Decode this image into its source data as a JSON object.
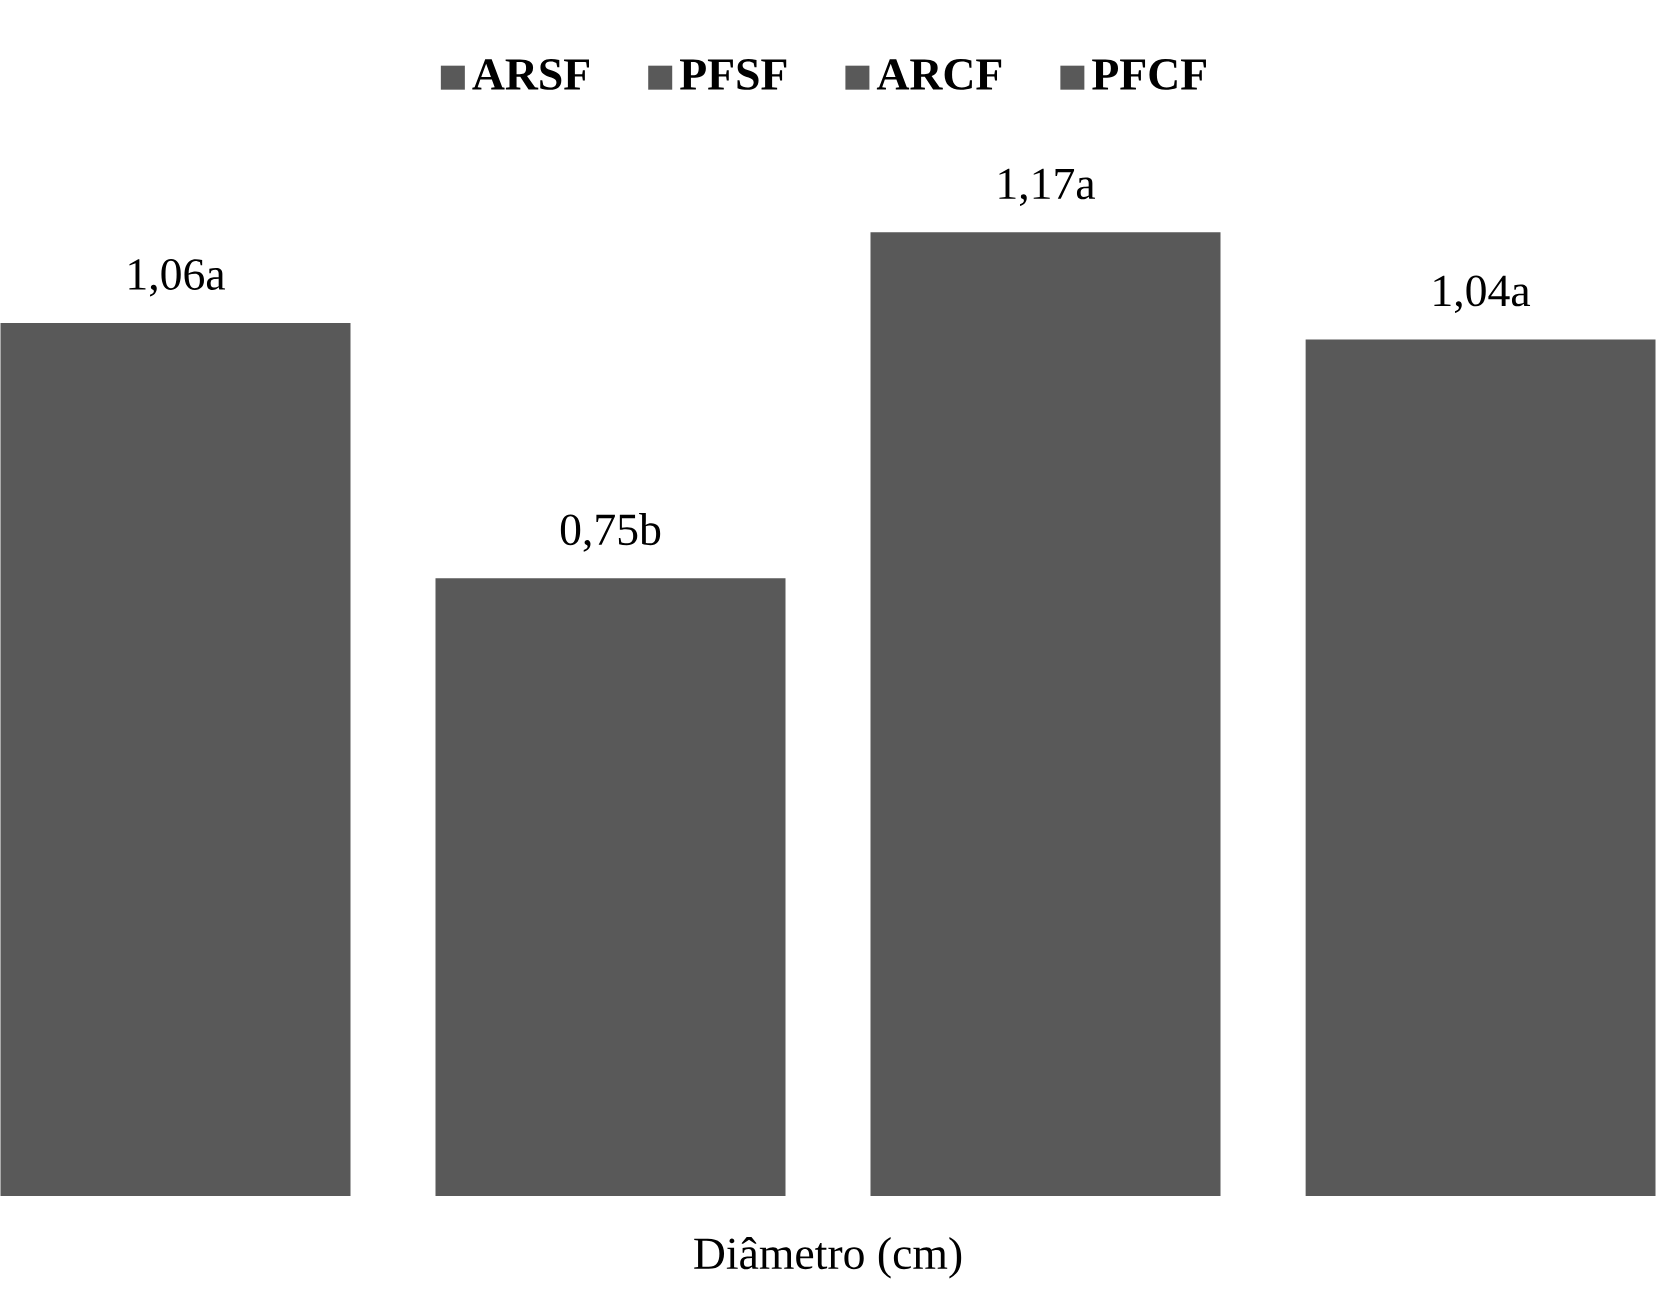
{
  "chart_data": {
    "type": "bar",
    "xlabel": "Diâmetro (cm)",
    "categories": [
      null
    ],
    "series": [
      {
        "name": "ARSF",
        "color": "#595959",
        "values": [
          1.06
        ],
        "value_labels": [
          "1,06a"
        ]
      },
      {
        "name": "PFSF",
        "color": "#595959",
        "values": [
          0.75
        ],
        "value_labels": [
          "0,75b"
        ]
      },
      {
        "name": "ARCF",
        "color": "#595959",
        "values": [
          1.17
        ],
        "value_labels": [
          "1,17a"
        ]
      },
      {
        "name": "PFCF",
        "color": "#595959",
        "values": [
          1.04
        ],
        "value_labels": [
          "1,04a"
        ]
      }
    ],
    "legend": "top"
  }
}
